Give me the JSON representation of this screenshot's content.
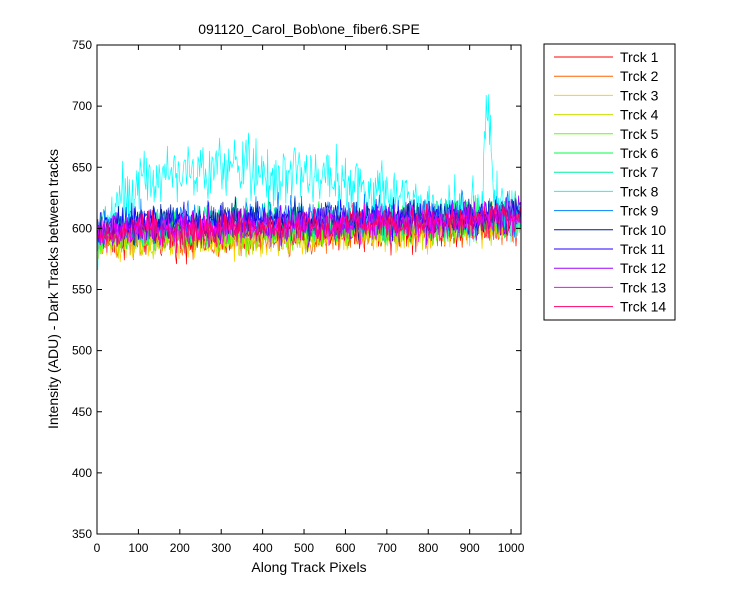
{
  "chart_data": {
    "type": "line",
    "title": "091120_Carol_Bob\\one_fiber6.SPE",
    "xlabel": "Along Track Pixels",
    "ylabel": "Intensity (ADU) - Dark Tracks between tracks",
    "xlim": [
      0,
      1024
    ],
    "ylim": [
      350,
      750
    ],
    "xticks": [
      "0",
      "100",
      "200",
      "300",
      "400",
      "500",
      "600",
      "700",
      "800",
      "900",
      "1000"
    ],
    "xtick_values": [
      0,
      100,
      200,
      300,
      400,
      500,
      600,
      700,
      800,
      900,
      1000
    ],
    "yticks": [
      "350",
      "400",
      "450",
      "500",
      "550",
      "600",
      "650",
      "700",
      "750"
    ],
    "ytick_values": [
      350,
      400,
      450,
      500,
      550,
      600,
      650,
      700,
      750
    ],
    "grid": false,
    "legend_position": "outside-right",
    "series": [
      {
        "name": "Trck 1",
        "color": "#ff0000",
        "x": [
          0,
          100,
          200,
          300,
          400,
          500,
          600,
          700,
          800,
          900,
          1000,
          1024
        ],
        "y": [
          592,
          593,
          592,
          593,
          594,
          596,
          598,
          599,
          600,
          603,
          606,
          607
        ],
        "noise": 8
      },
      {
        "name": "Trck 2",
        "color": "#ff6000",
        "x": [
          0,
          100,
          200,
          300,
          400,
          500,
          600,
          700,
          800,
          900,
          1000,
          1024
        ],
        "y": [
          590,
          591,
          590,
          591,
          592,
          594,
          596,
          597,
          598,
          601,
          604,
          605
        ],
        "noise": 7
      },
      {
        "name": "Trck 3",
        "color": "#ffd000",
        "x": [
          0,
          100,
          200,
          300,
          400,
          500,
          600,
          700,
          800,
          900,
          1000,
          1024
        ],
        "y": [
          589,
          590,
          589,
          590,
          591,
          593,
          595,
          596,
          597,
          600,
          603,
          604
        ],
        "noise": 7
      },
      {
        "name": "Trck 4",
        "color": "#c8e000",
        "x": [
          0,
          100,
          200,
          300,
          400,
          500,
          600,
          700,
          800,
          900,
          1000,
          1024
        ],
        "y": [
          591,
          592,
          591,
          592,
          593,
          595,
          597,
          598,
          599,
          602,
          605,
          606
        ],
        "noise": 7
      },
      {
        "name": "Trck 5",
        "color": "#60ff00",
        "x": [
          0,
          100,
          200,
          300,
          400,
          500,
          600,
          700,
          800,
          900,
          1000,
          1024
        ],
        "y": [
          592,
          594,
          593,
          594,
          595,
          597,
          599,
          600,
          601,
          604,
          607,
          608
        ],
        "noise": 7
      },
      {
        "name": "Trck 6",
        "color": "#00ff40",
        "x": [
          0,
          100,
          200,
          300,
          400,
          500,
          600,
          700,
          800,
          900,
          1000,
          1024
        ],
        "y": [
          596,
          600,
          601,
          602,
          602,
          603,
          604,
          604,
          605,
          607,
          609,
          610
        ],
        "noise": 8
      },
      {
        "name": "Trck 7",
        "color": "#00f0a0",
        "x": [
          0,
          100,
          200,
          300,
          400,
          500,
          600,
          700,
          800,
          900,
          1000,
          1024
        ],
        "y": [
          598,
          603,
          604,
          605,
          605,
          605,
          606,
          606,
          607,
          609,
          611,
          612
        ],
        "noise": 8
      },
      {
        "name": "Trck 8",
        "color": "#00ffff",
        "x": [
          0,
          20,
          50,
          80,
          100,
          150,
          200,
          250,
          300,
          350,
          400,
          450,
          500,
          550,
          600,
          650,
          700,
          750,
          800,
          850,
          900,
          930,
          940,
          945,
          950,
          960,
          1000,
          1024
        ],
        "y": [
          590,
          600,
          620,
          630,
          636,
          642,
          646,
          649,
          650,
          648,
          646,
          645,
          644,
          641,
          637,
          632,
          628,
          624,
          620,
          617,
          614,
          613,
          690,
          705,
          680,
          615,
          612,
          612
        ],
        "noise": 12
      },
      {
        "name": "Trck 9",
        "color": "#0080ff",
        "x": [
          0,
          100,
          200,
          300,
          400,
          500,
          600,
          700,
          800,
          900,
          1000,
          1024
        ],
        "y": [
          599,
          605,
          607,
          608,
          609,
          609,
          610,
          610,
          610,
          611,
          613,
          614
        ],
        "noise": 8
      },
      {
        "name": "Trck 10",
        "color": "#001a90",
        "x": [
          0,
          100,
          200,
          300,
          400,
          500,
          600,
          700,
          800,
          900,
          1000,
          1024
        ],
        "y": [
          597,
          603,
          605,
          606,
          607,
          607,
          608,
          608,
          608,
          609,
          611,
          612
        ],
        "noise": 7
      },
      {
        "name": "Trck 11",
        "color": "#2000ff",
        "x": [
          0,
          100,
          200,
          300,
          400,
          500,
          600,
          700,
          800,
          900,
          1000,
          1024
        ],
        "y": [
          598,
          604,
          606,
          607,
          608,
          608,
          609,
          609,
          609,
          610,
          612,
          613
        ],
        "noise": 7
      },
      {
        "name": "Trck 12",
        "color": "#a000ff",
        "x": [
          0,
          100,
          200,
          300,
          400,
          500,
          600,
          700,
          800,
          900,
          1000,
          1024
        ],
        "y": [
          595,
          599,
          600,
          601,
          602,
          603,
          604,
          605,
          605,
          607,
          609,
          610
        ],
        "noise": 7
      },
      {
        "name": "Trck 13",
        "color": "#ff00ff",
        "x": [
          0,
          100,
          200,
          300,
          400,
          500,
          600,
          700,
          800,
          900,
          1000,
          1024
        ],
        "y": [
          594,
          598,
          599,
          600,
          601,
          602,
          603,
          604,
          604,
          606,
          608,
          609
        ],
        "noise": 7
      },
      {
        "name": "Trck 14",
        "color": "#ff0066",
        "x": [
          0,
          100,
          200,
          300,
          400,
          500,
          600,
          700,
          800,
          900,
          1000,
          1024
        ],
        "y": [
          593,
          597,
          598,
          599,
          600,
          601,
          602,
          603,
          604,
          606,
          608,
          609
        ],
        "noise": 7
      }
    ]
  }
}
